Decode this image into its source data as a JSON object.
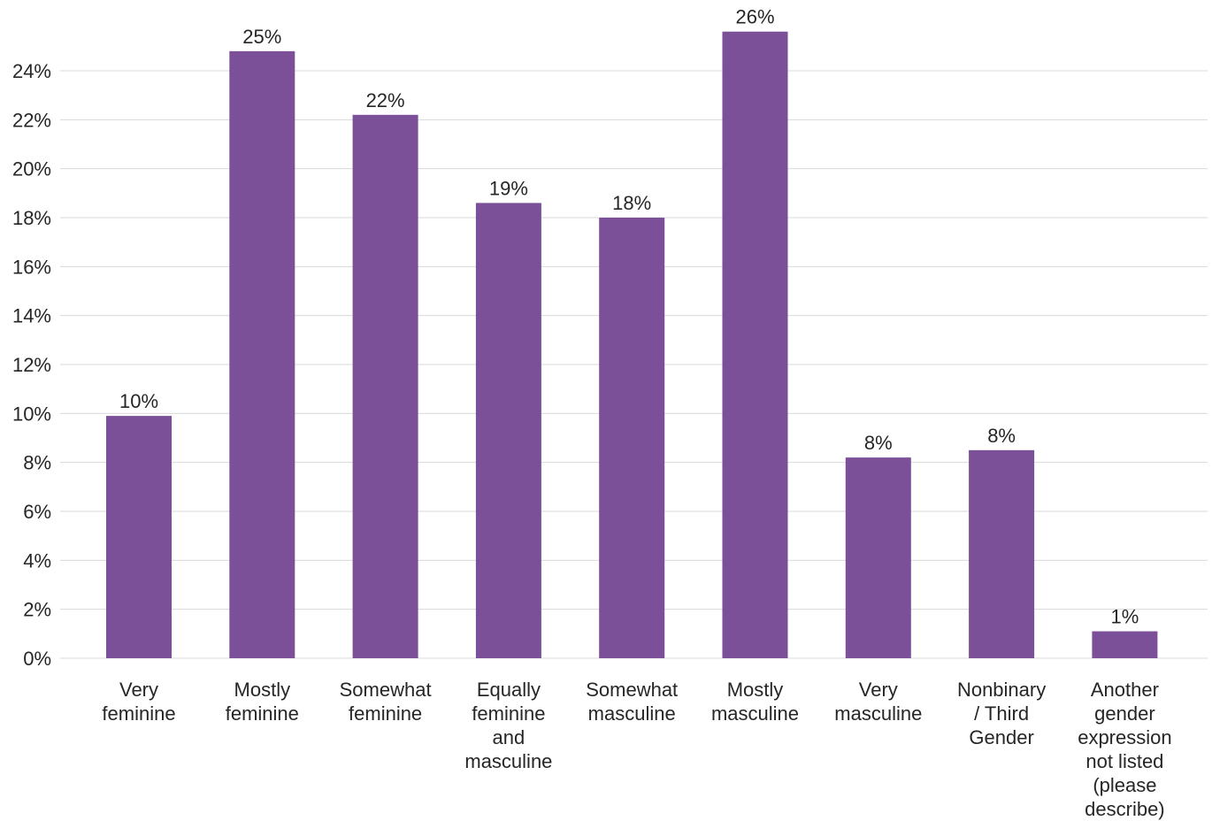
{
  "chart_data": {
    "type": "bar",
    "categories": [
      "Very feminine",
      "Mostly feminine",
      "Somewhat feminine",
      "Equally feminine and masculine",
      "Somewhat masculine",
      "Mostly masculine",
      "Very masculine",
      "Nonbinary / Third Gender",
      "Another gender expression not listed (please describe)"
    ],
    "category_lines": [
      [
        "Very",
        "feminine"
      ],
      [
        "Mostly",
        "feminine"
      ],
      [
        "Somewhat",
        "feminine"
      ],
      [
        "Equally",
        "feminine",
        "and",
        "masculine"
      ],
      [
        "Somewhat",
        "masculine"
      ],
      [
        "Mostly",
        "masculine"
      ],
      [
        "Very",
        "masculine"
      ],
      [
        "Nonbinary",
        "/ Third",
        "Gender"
      ],
      [
        "Another",
        "gender",
        "expression",
        "not listed",
        "(please",
        "describe)"
      ]
    ],
    "values": [
      9.9,
      24.8,
      22.2,
      18.6,
      18.0,
      25.6,
      8.2,
      8.5,
      1.1
    ],
    "data_labels": [
      "10%",
      "25%",
      "22%",
      "19%",
      "18%",
      "26%",
      "8%",
      "8%",
      "1%"
    ],
    "ylim": [
      0,
      24
    ],
    "yticks": [
      "0%",
      "2%",
      "4%",
      "6%",
      "8%",
      "10%",
      "12%",
      "14%",
      "16%",
      "18%",
      "20%",
      "22%",
      "24%"
    ],
    "ytick_values": [
      0,
      2,
      4,
      6,
      8,
      10,
      12,
      14,
      16,
      18,
      20,
      22,
      24
    ],
    "grid": true,
    "bar_color": "#7b5099",
    "title": "",
    "xlabel": "",
    "ylabel": ""
  }
}
